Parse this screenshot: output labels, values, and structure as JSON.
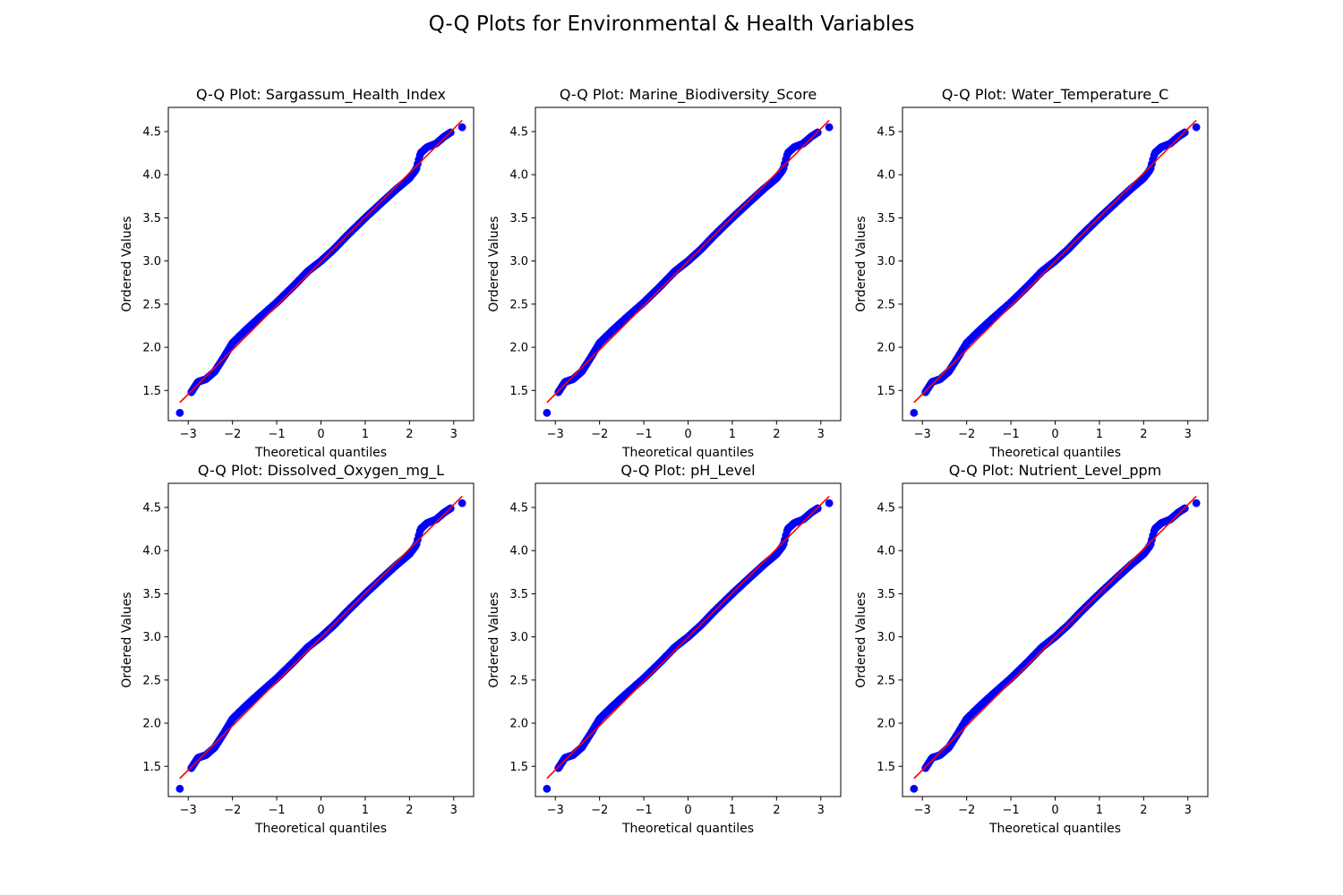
{
  "figure": {
    "title": "Q-Q Plots for Environmental & Health Variables"
  },
  "colors": {
    "points": "#0000ff",
    "fit_line": "#ff0000",
    "axes": "#000000"
  },
  "chart_data": [
    {
      "type": "scatter",
      "title": "Q-Q Plot: Sargassum_Health_Index",
      "xlabel": "Theoretical quantiles",
      "ylabel": "Ordered Values",
      "xlim": [
        -3.45,
        3.45
      ],
      "ylim": [
        1.15,
        4.78
      ],
      "xticks": [
        -3,
        -2,
        -1,
        0,
        1,
        2,
        3
      ],
      "yticks": [
        1.5,
        2.0,
        2.5,
        3.0,
        3.5,
        4.0,
        4.5
      ],
      "xtick_labels": [
        "−3",
        "−2",
        "−1",
        "0",
        "1",
        "2",
        "3"
      ],
      "ytick_labels": [
        "1.5",
        "2.0",
        "2.5",
        "3.0",
        "3.5",
        "4.0",
        "4.5"
      ],
      "grid": false,
      "fit_line": {
        "x": [
          -3.19,
          3.19
        ],
        "y": [
          1.36,
          4.63
        ]
      },
      "series": [
        {
          "x": [
            -3.19,
            -2.93,
            -2.78,
            -2.6,
            -2.4,
            -2.2,
            -2.0,
            -1.7,
            -1.4,
            -1.0,
            -0.6,
            -0.3,
            0.0,
            0.3,
            0.6,
            1.0,
            1.4,
            1.7,
            2.0,
            2.15,
            2.25,
            2.4,
            2.6,
            2.78,
            2.93,
            3.19
          ],
          "y": [
            1.24,
            1.48,
            1.6,
            1.63,
            1.72,
            1.88,
            2.05,
            2.2,
            2.34,
            2.52,
            2.72,
            2.88,
            3.0,
            3.14,
            3.3,
            3.5,
            3.69,
            3.83,
            3.96,
            4.06,
            4.25,
            4.32,
            4.36,
            4.44,
            4.49,
            4.55
          ]
        }
      ]
    },
    {
      "type": "scatter",
      "title": "Q-Q Plot: Marine_Biodiversity_Score",
      "xlabel": "Theoretical quantiles",
      "ylabel": "Ordered Values",
      "xlim": [
        -3.45,
        3.45
      ],
      "ylim": [
        1.15,
        4.78
      ],
      "xticks": [
        -3,
        -2,
        -1,
        0,
        1,
        2,
        3
      ],
      "yticks": [
        1.5,
        2.0,
        2.5,
        3.0,
        3.5,
        4.0,
        4.5
      ],
      "xtick_labels": [
        "−3",
        "−2",
        "−1",
        "0",
        "1",
        "2",
        "3"
      ],
      "ytick_labels": [
        "1.5",
        "2.0",
        "2.5",
        "3.0",
        "3.5",
        "4.0",
        "4.5"
      ],
      "grid": false,
      "fit_line": {
        "x": [
          -3.19,
          3.19
        ],
        "y": [
          1.36,
          4.63
        ]
      },
      "series": [
        {
          "x": [
            -3.19,
            -2.93,
            -2.78,
            -2.6,
            -2.4,
            -2.2,
            -2.0,
            -1.7,
            -1.4,
            -1.0,
            -0.6,
            -0.3,
            0.0,
            0.3,
            0.6,
            1.0,
            1.4,
            1.7,
            2.0,
            2.15,
            2.25,
            2.4,
            2.6,
            2.78,
            2.93,
            3.19
          ],
          "y": [
            1.24,
            1.48,
            1.6,
            1.63,
            1.72,
            1.88,
            2.05,
            2.2,
            2.34,
            2.52,
            2.72,
            2.88,
            3.0,
            3.14,
            3.3,
            3.5,
            3.69,
            3.83,
            3.96,
            4.06,
            4.25,
            4.32,
            4.36,
            4.44,
            4.49,
            4.55
          ]
        }
      ]
    },
    {
      "type": "scatter",
      "title": "Q-Q Plot: Water_Temperature_C",
      "xlabel": "Theoretical quantiles",
      "ylabel": "Ordered Values",
      "xlim": [
        -3.45,
        3.45
      ],
      "ylim": [
        1.15,
        4.78
      ],
      "xticks": [
        -3,
        -2,
        -1,
        0,
        1,
        2,
        3
      ],
      "yticks": [
        1.5,
        2.0,
        2.5,
        3.0,
        3.5,
        4.0,
        4.5
      ],
      "xtick_labels": [
        "−3",
        "−2",
        "−1",
        "0",
        "1",
        "2",
        "3"
      ],
      "ytick_labels": [
        "1.5",
        "2.0",
        "2.5",
        "3.0",
        "3.5",
        "4.0",
        "4.5"
      ],
      "grid": false,
      "fit_line": {
        "x": [
          -3.19,
          3.19
        ],
        "y": [
          1.36,
          4.63
        ]
      },
      "series": [
        {
          "x": [
            -3.19,
            -2.93,
            -2.78,
            -2.6,
            -2.4,
            -2.2,
            -2.0,
            -1.7,
            -1.4,
            -1.0,
            -0.6,
            -0.3,
            0.0,
            0.3,
            0.6,
            1.0,
            1.4,
            1.7,
            2.0,
            2.15,
            2.25,
            2.4,
            2.6,
            2.78,
            2.93,
            3.19
          ],
          "y": [
            1.24,
            1.48,
            1.6,
            1.63,
            1.72,
            1.88,
            2.05,
            2.2,
            2.34,
            2.52,
            2.72,
            2.88,
            3.0,
            3.14,
            3.3,
            3.5,
            3.69,
            3.83,
            3.96,
            4.06,
            4.25,
            4.32,
            4.36,
            4.44,
            4.49,
            4.55
          ]
        }
      ]
    },
    {
      "type": "scatter",
      "title": "Q-Q Plot: Dissolved_Oxygen_mg_L",
      "xlabel": "Theoretical quantiles",
      "ylabel": "Ordered Values",
      "xlim": [
        -3.45,
        3.45
      ],
      "ylim": [
        1.15,
        4.78
      ],
      "xticks": [
        -3,
        -2,
        -1,
        0,
        1,
        2,
        3
      ],
      "yticks": [
        1.5,
        2.0,
        2.5,
        3.0,
        3.5,
        4.0,
        4.5
      ],
      "xtick_labels": [
        "−3",
        "−2",
        "−1",
        "0",
        "1",
        "2",
        "3"
      ],
      "ytick_labels": [
        "1.5",
        "2.0",
        "2.5",
        "3.0",
        "3.5",
        "4.0",
        "4.5"
      ],
      "grid": false,
      "fit_line": {
        "x": [
          -3.19,
          3.19
        ],
        "y": [
          1.36,
          4.63
        ]
      },
      "series": [
        {
          "x": [
            -3.19,
            -2.93,
            -2.78,
            -2.6,
            -2.4,
            -2.2,
            -2.0,
            -1.7,
            -1.4,
            -1.0,
            -0.6,
            -0.3,
            0.0,
            0.3,
            0.6,
            1.0,
            1.4,
            1.7,
            2.0,
            2.15,
            2.25,
            2.4,
            2.6,
            2.78,
            2.93,
            3.19
          ],
          "y": [
            1.24,
            1.48,
            1.6,
            1.63,
            1.72,
            1.88,
            2.05,
            2.2,
            2.34,
            2.52,
            2.72,
            2.88,
            3.0,
            3.14,
            3.3,
            3.5,
            3.69,
            3.83,
            3.96,
            4.06,
            4.25,
            4.32,
            4.36,
            4.44,
            4.49,
            4.55
          ]
        }
      ]
    },
    {
      "type": "scatter",
      "title": "Q-Q Plot: pH_Level",
      "xlabel": "Theoretical quantiles",
      "ylabel": "Ordered Values",
      "xlim": [
        -3.45,
        3.45
      ],
      "ylim": [
        1.15,
        4.78
      ],
      "xticks": [
        -3,
        -2,
        -1,
        0,
        1,
        2,
        3
      ],
      "yticks": [
        1.5,
        2.0,
        2.5,
        3.0,
        3.5,
        4.0,
        4.5
      ],
      "xtick_labels": [
        "−3",
        "−2",
        "−1",
        "0",
        "1",
        "2",
        "3"
      ],
      "ytick_labels": [
        "1.5",
        "2.0",
        "2.5",
        "3.0",
        "3.5",
        "4.0",
        "4.5"
      ],
      "grid": false,
      "fit_line": {
        "x": [
          -3.19,
          3.19
        ],
        "y": [
          1.36,
          4.63
        ]
      },
      "series": [
        {
          "x": [
            -3.19,
            -2.93,
            -2.78,
            -2.6,
            -2.4,
            -2.2,
            -2.0,
            -1.7,
            -1.4,
            -1.0,
            -0.6,
            -0.3,
            0.0,
            0.3,
            0.6,
            1.0,
            1.4,
            1.7,
            2.0,
            2.15,
            2.25,
            2.4,
            2.6,
            2.78,
            2.93,
            3.19
          ],
          "y": [
            1.24,
            1.48,
            1.6,
            1.63,
            1.72,
            1.88,
            2.05,
            2.2,
            2.34,
            2.52,
            2.72,
            2.88,
            3.0,
            3.14,
            3.3,
            3.5,
            3.69,
            3.83,
            3.96,
            4.06,
            4.25,
            4.32,
            4.36,
            4.44,
            4.49,
            4.55
          ]
        }
      ]
    },
    {
      "type": "scatter",
      "title": "Q-Q Plot: Nutrient_Level_ppm",
      "xlabel": "Theoretical quantiles",
      "ylabel": "Ordered Values",
      "xlim": [
        -3.45,
        3.45
      ],
      "ylim": [
        1.15,
        4.78
      ],
      "xticks": [
        -3,
        -2,
        -1,
        0,
        1,
        2,
        3
      ],
      "yticks": [
        1.5,
        2.0,
        2.5,
        3.0,
        3.5,
        4.0,
        4.5
      ],
      "xtick_labels": [
        "−3",
        "−2",
        "−1",
        "0",
        "1",
        "2",
        "3"
      ],
      "ytick_labels": [
        "1.5",
        "2.0",
        "2.5",
        "3.0",
        "3.5",
        "4.0",
        "4.5"
      ],
      "grid": false,
      "fit_line": {
        "x": [
          -3.19,
          3.19
        ],
        "y": [
          1.36,
          4.63
        ]
      },
      "series": [
        {
          "x": [
            -3.19,
            -2.93,
            -2.78,
            -2.6,
            -2.4,
            -2.2,
            -2.0,
            -1.7,
            -1.4,
            -1.0,
            -0.6,
            -0.3,
            0.0,
            0.3,
            0.6,
            1.0,
            1.4,
            1.7,
            2.0,
            2.15,
            2.25,
            2.4,
            2.6,
            2.78,
            2.93,
            3.19
          ],
          "y": [
            1.24,
            1.48,
            1.6,
            1.63,
            1.72,
            1.88,
            2.05,
            2.2,
            2.34,
            2.52,
            2.72,
            2.88,
            3.0,
            3.14,
            3.3,
            3.5,
            3.69,
            3.83,
            3.96,
            4.06,
            4.25,
            4.32,
            4.36,
            4.44,
            4.49,
            4.55
          ]
        }
      ]
    }
  ]
}
